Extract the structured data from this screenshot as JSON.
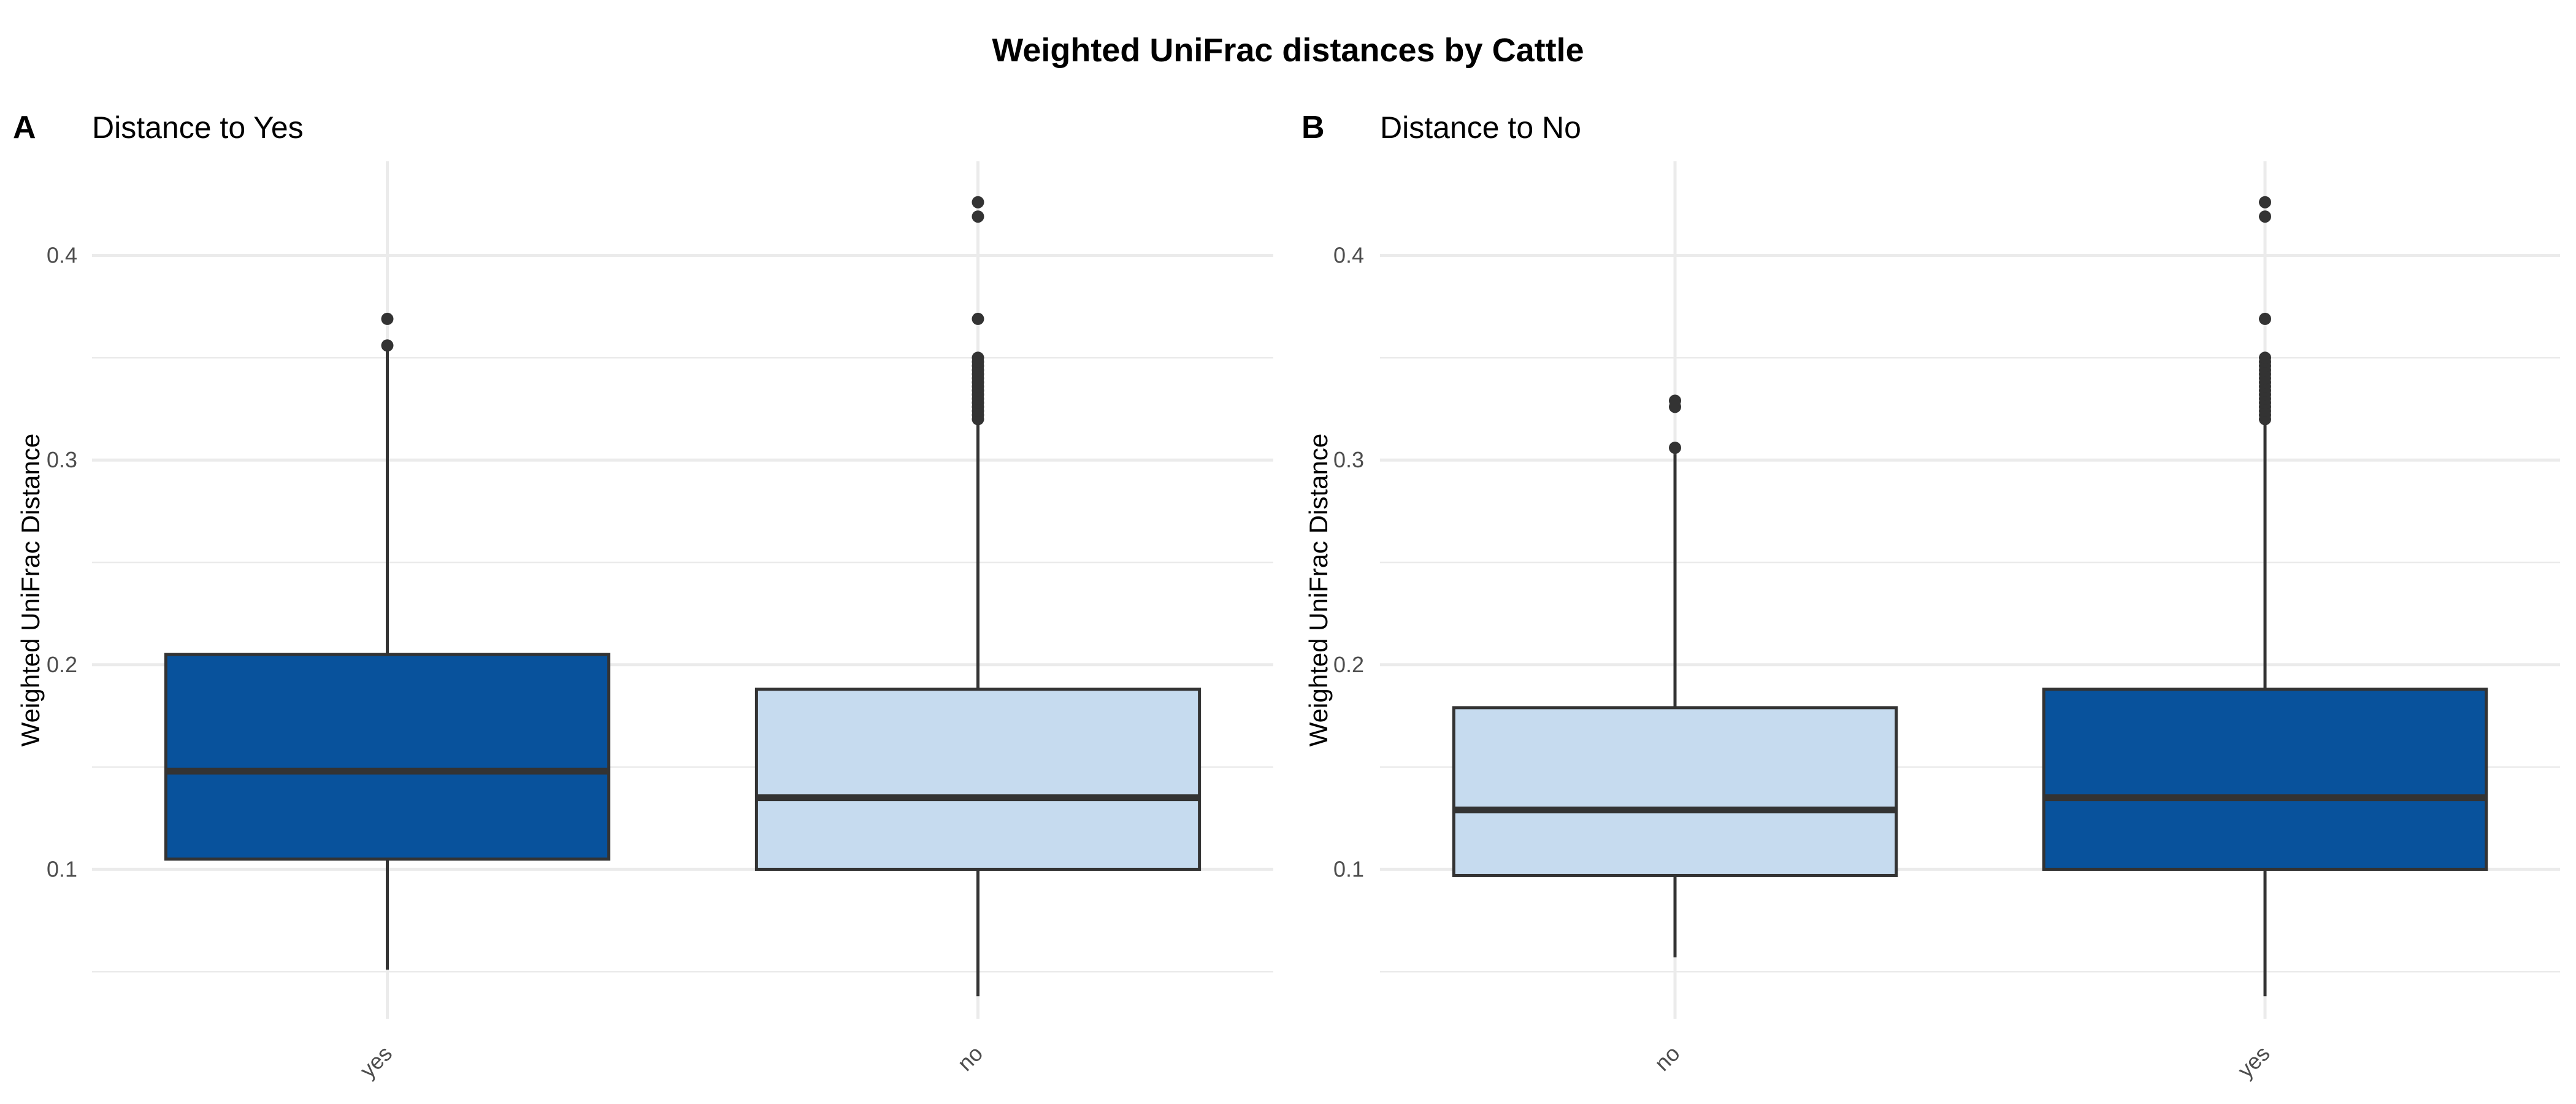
{
  "title": "Weighted UniFrac distances by Cattle",
  "colors": {
    "yes": "#08529c",
    "no": "#c6dbef",
    "outline": "#333333",
    "grid": "#ebebeb"
  },
  "chart_data": [
    {
      "type": "box",
      "tag": "A",
      "title": "Distance to Yes",
      "xlabel": "",
      "ylabel": "Weighted UniFrac Distance",
      "ylim": [
        0.027,
        0.446
      ],
      "yticks": [
        "0.1",
        "0.2",
        "0.3",
        "0.4"
      ],
      "grid": true,
      "categories": [
        "yes",
        "no"
      ],
      "boxes": [
        {
          "category": "yes",
          "fill": "yes",
          "lower_whisker": 0.051,
          "q1": 0.105,
          "median": 0.148,
          "q3": 0.205,
          "upper_whisker": 0.356,
          "outliers": [
            0.356,
            0.369
          ]
        },
        {
          "category": "no",
          "fill": "no",
          "lower_whisker": 0.038,
          "q1": 0.1,
          "median": 0.135,
          "q3": 0.188,
          "upper_whisker": 0.318,
          "outliers": [
            0.32,
            0.322,
            0.324,
            0.326,
            0.328,
            0.33,
            0.332,
            0.334,
            0.336,
            0.338,
            0.34,
            0.342,
            0.344,
            0.346,
            0.348,
            0.35,
            0.369,
            0.419,
            0.426
          ]
        }
      ]
    },
    {
      "type": "box",
      "tag": "B",
      "title": "Distance to No",
      "xlabel": "",
      "ylabel": "Weighted UniFrac Distance",
      "ylim": [
        0.027,
        0.446
      ],
      "yticks": [
        "0.1",
        "0.2",
        "0.3",
        "0.4"
      ],
      "grid": true,
      "categories": [
        "no",
        "yes"
      ],
      "boxes": [
        {
          "category": "no",
          "fill": "no",
          "lower_whisker": 0.057,
          "q1": 0.097,
          "median": 0.129,
          "q3": 0.179,
          "upper_whisker": 0.303,
          "outliers": [
            0.306,
            0.326,
            0.329
          ]
        },
        {
          "category": "yes",
          "fill": "yes",
          "lower_whisker": 0.038,
          "q1": 0.1,
          "median": 0.135,
          "q3": 0.188,
          "upper_whisker": 0.318,
          "outliers": [
            0.32,
            0.322,
            0.324,
            0.326,
            0.328,
            0.33,
            0.332,
            0.334,
            0.336,
            0.338,
            0.34,
            0.342,
            0.344,
            0.346,
            0.348,
            0.35,
            0.369,
            0.419,
            0.426
          ]
        }
      ]
    }
  ]
}
